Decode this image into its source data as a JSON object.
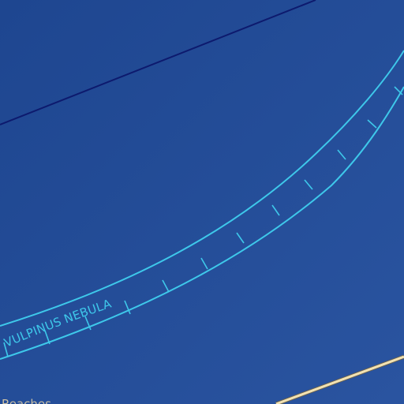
{
  "map": {
    "labels": {
      "nebula": "VULPINUS NEBULA",
      "corner": "Reaches"
    },
    "colors": {
      "background": "#1f4a92",
      "background_light": "#2a54a0",
      "nebula_band": "#3ec8ea",
      "dark_line": "#0d1a6e",
      "route_line": "#f2e2b2",
      "corner_text": "#c9bfa5"
    }
  }
}
